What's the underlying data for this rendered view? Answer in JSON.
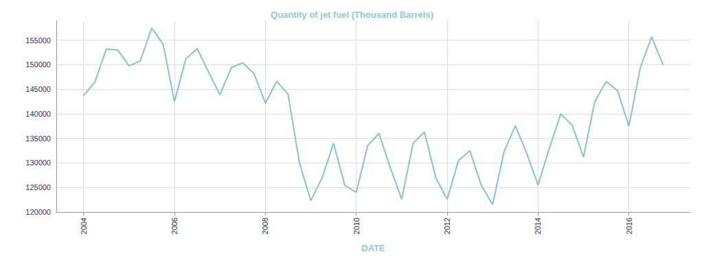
{
  "chart_data": {
    "type": "line",
    "title": "Quantity of jet fuel (Thousand Barrels)",
    "x_label": "DATE",
    "x": [
      2004.0,
      2004.25,
      2004.5,
      2004.75,
      2005.0,
      2005.25,
      2005.5,
      2005.75,
      2006.0,
      2006.25,
      2006.5,
      2006.75,
      2007.0,
      2007.25,
      2007.5,
      2007.75,
      2008.0,
      2008.25,
      2008.5,
      2008.75,
      2009.0,
      2009.25,
      2009.5,
      2009.75,
      2010.0,
      2010.25,
      2010.5,
      2010.75,
      2011.0,
      2011.25,
      2011.5,
      2011.75,
      2012.0,
      2012.25,
      2012.5,
      2012.75,
      2013.0,
      2013.25,
      2013.5,
      2013.75,
      2014.0,
      2014.25,
      2014.5,
      2014.75,
      2015.0,
      2015.25,
      2015.5,
      2015.75,
      2016.0,
      2016.25,
      2016.5,
      2016.75
    ],
    "values": [
      143700,
      146500,
      153200,
      153000,
      149800,
      150800,
      157500,
      154200,
      142500,
      151200,
      153300,
      148500,
      143900,
      149400,
      150400,
      148200,
      142200,
      146600,
      144000,
      130000,
      122300,
      127000,
      134000,
      125400,
      124000,
      133500,
      136000,
      129000,
      122600,
      134000,
      136300,
      127000,
      122600,
      130500,
      132500,
      125500,
      121500,
      132200,
      137600,
      132000,
      125500,
      133000,
      140000,
      137700,
      131200,
      142500,
      146600,
      144700,
      137500,
      149400,
      155700,
      150000
    ],
    "color": "#85c5c3",
    "xlim": [
      2003.4,
      2017.35
    ],
    "xticks": [
      2004,
      2006,
      2008,
      2010,
      2012,
      2014,
      2016
    ],
    "ylim": [
      120000,
      159000
    ],
    "yticks": [
      120000,
      125000,
      130000,
      135000,
      140000,
      145000,
      150000,
      155000
    ],
    "grid": true
  }
}
